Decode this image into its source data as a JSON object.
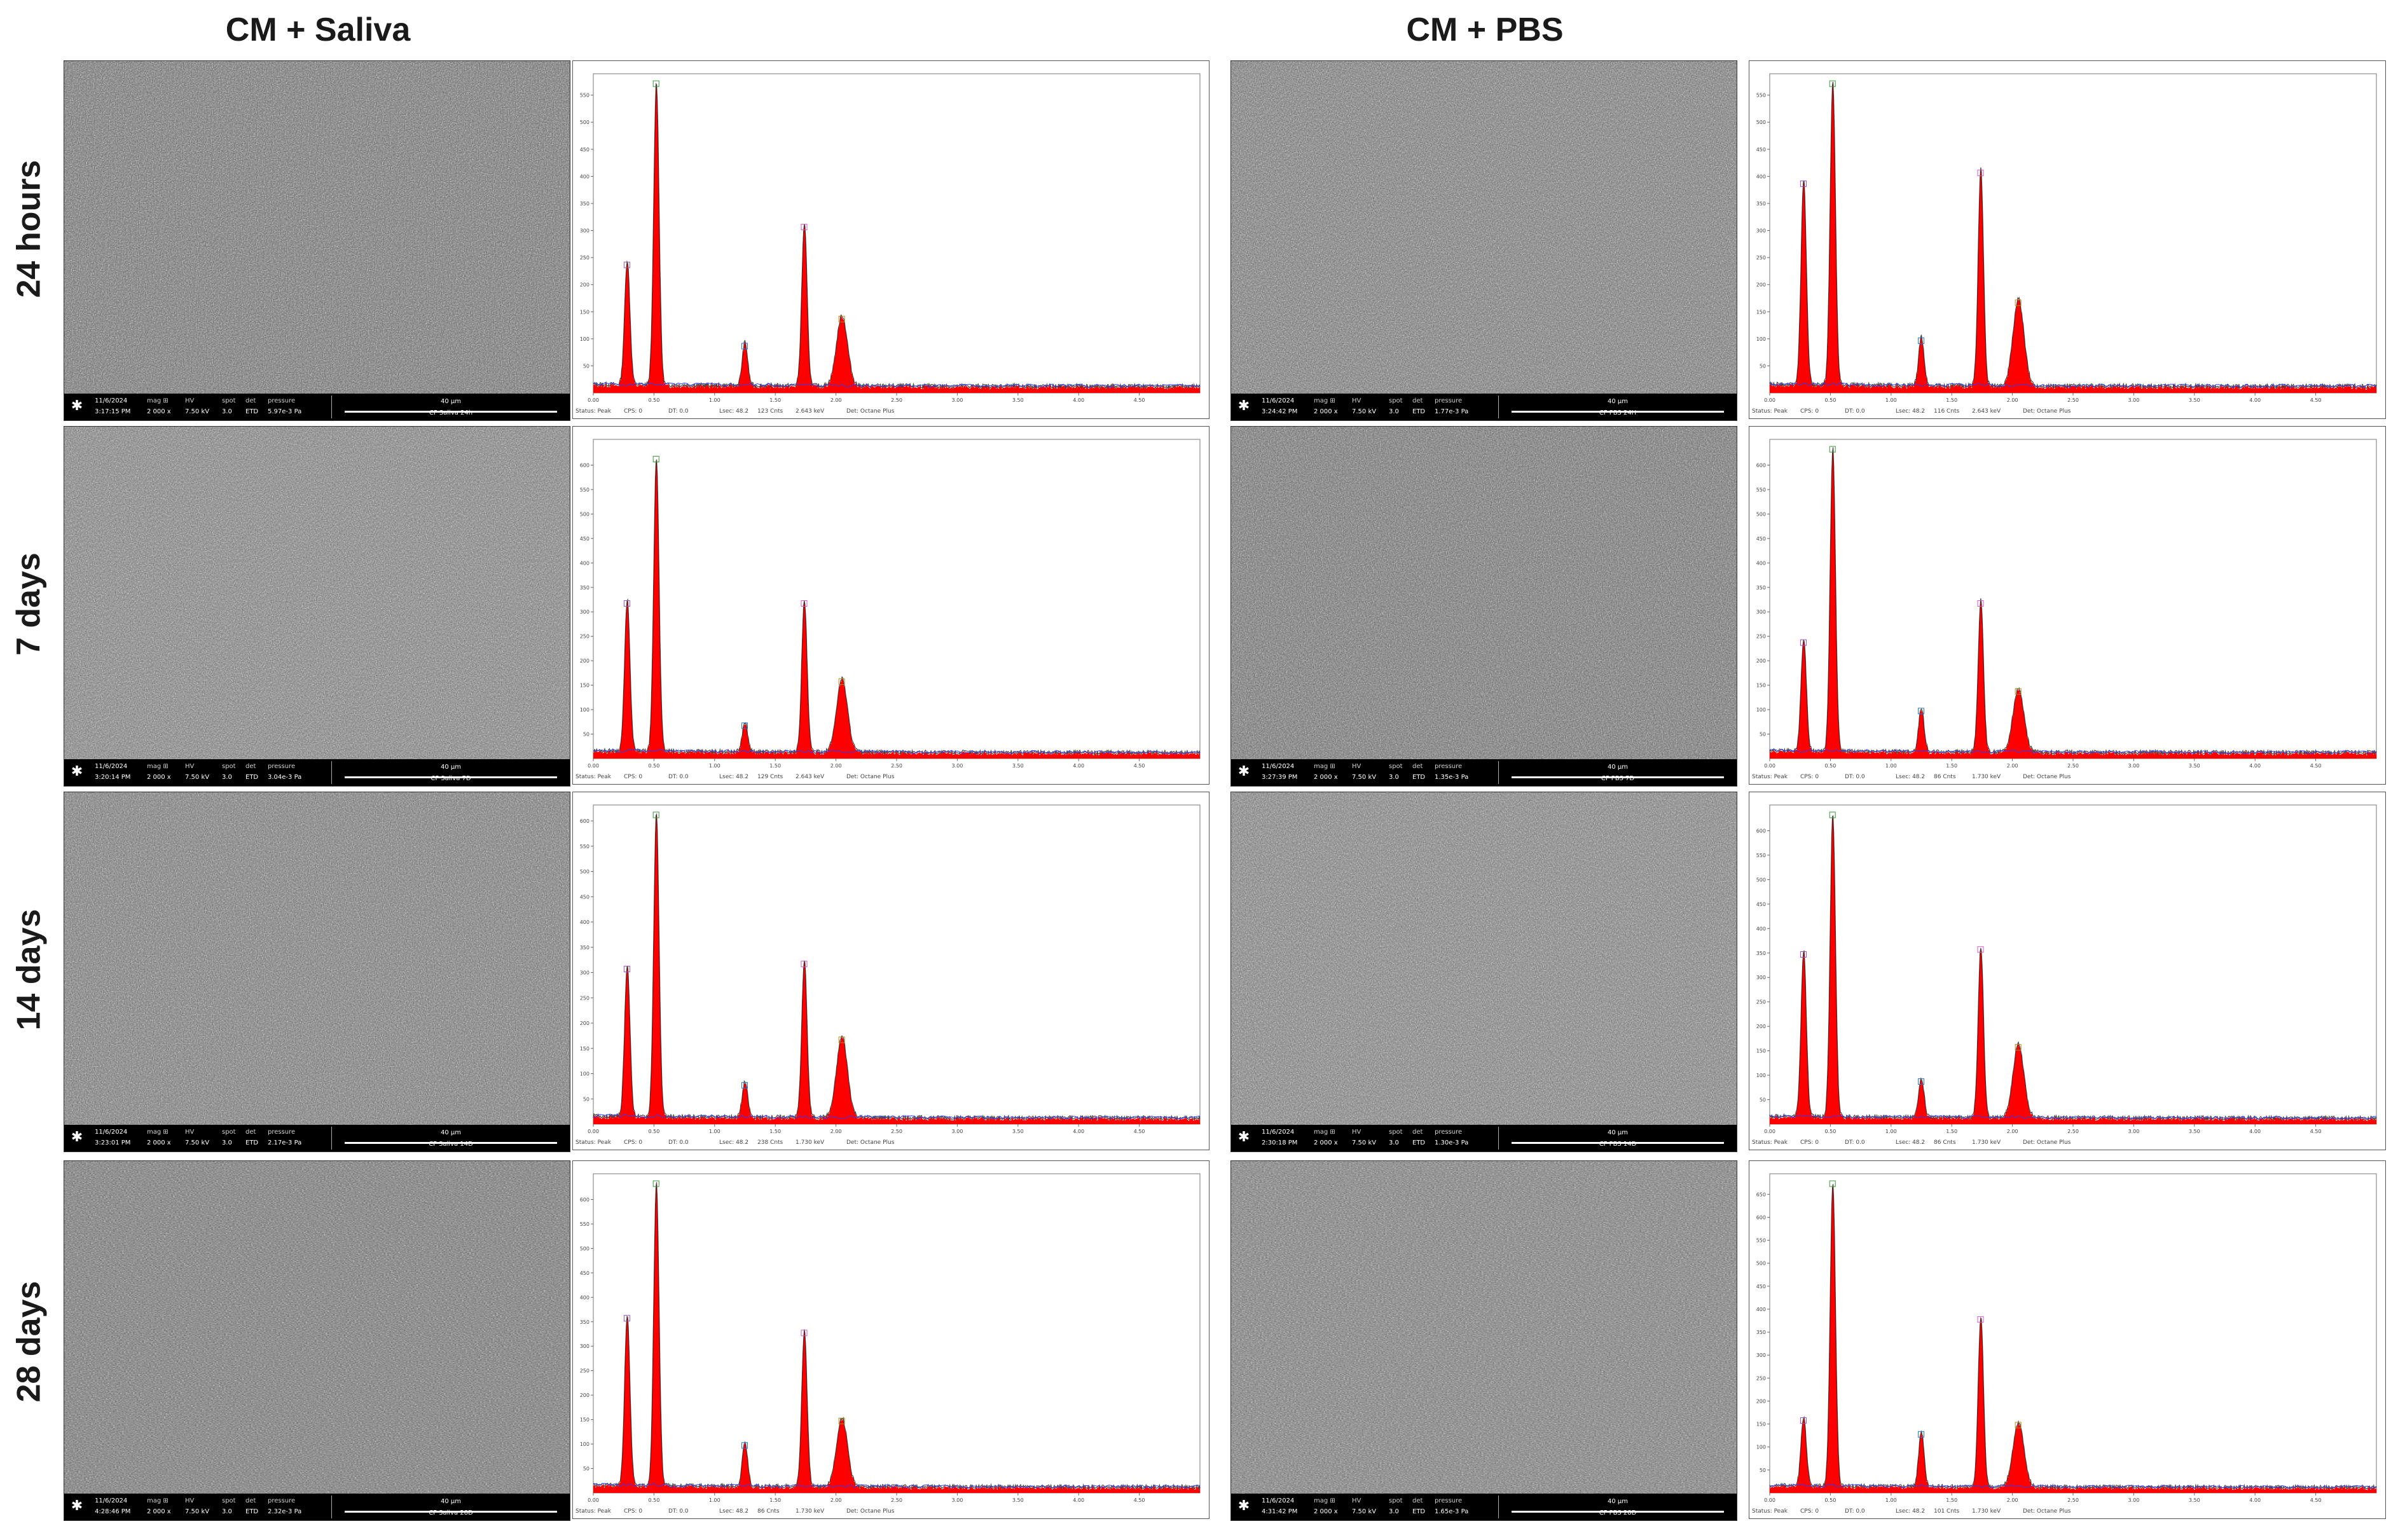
{
  "columns": [
    {
      "title": "CM + Saliva"
    },
    {
      "title": "CM + PBS"
    }
  ],
  "rows": [
    {
      "label": "24 hours"
    },
    {
      "label": "7 days"
    },
    {
      "label": "14 days"
    },
    {
      "label": "28 days"
    }
  ],
  "sem_headers": {
    "mag": "mag",
    "hv": "HV",
    "spot": "spot",
    "det": "det",
    "pressure": "pressure",
    "scale": "40 µm"
  },
  "sem_images": [
    {
      "date": "11/6/2024",
      "time": "3:17:15 PM",
      "mag": "2 000 x",
      "hv": "7.50 kV",
      "spot": "3.0",
      "det": "ETD",
      "pressure": "5.97e-3 Pa",
      "name": "CF Saliva 24h"
    },
    {
      "date": "11/6/2024",
      "time": "3:24:42 PM",
      "mag": "2 000 x",
      "hv": "7.50 kV",
      "spot": "3.0",
      "det": "ETD",
      "pressure": "1.77e-3 Pa",
      "name": "CF PBS 24H"
    },
    {
      "date": "11/6/2024",
      "time": "3:20:14 PM",
      "mag": "2 000 x",
      "hv": "7.50 kV",
      "spot": "3.0",
      "det": "ETD",
      "pressure": "3.04e-3 Pa",
      "name": "CF Saliva 7D"
    },
    {
      "date": "11/6/2024",
      "time": "3:27:39 PM",
      "mag": "2 000 x",
      "hv": "7.50 kV",
      "spot": "3.0",
      "det": "ETD",
      "pressure": "1.35e-3 Pa",
      "name": "CF PBS 7D"
    },
    {
      "date": "11/6/2024",
      "time": "3:23:01 PM",
      "mag": "2 000 x",
      "hv": "7.50 kV",
      "spot": "3.0",
      "det": "ETD",
      "pressure": "2.17e-3 Pa",
      "name": "CF Saliva 14D"
    },
    {
      "date": "11/6/2024",
      "time": "2:30:18 PM",
      "mag": "2 000 x",
      "hv": "7.50 kV",
      "spot": "3.0",
      "det": "ETD",
      "pressure": "1.30e-3 Pa",
      "name": "CF PBS 14D"
    },
    {
      "date": "11/6/2024",
      "time": "4:28:46 PM",
      "mag": "2 000 x",
      "hv": "7.50 kV",
      "spot": "3.0",
      "det": "ETD",
      "pressure": "2.32e-3 Pa",
      "name": "CF Saliva 28D"
    },
    {
      "date": "11/6/2024",
      "time": "4:31:42 PM",
      "mag": "2 000 x",
      "hv": "7.50 kV",
      "spot": "3.0",
      "det": "ETD",
      "pressure": "1.65e-3 Pa",
      "name": "CF PBS 28D"
    }
  ],
  "eds_footer": {
    "status": "Status: Peak",
    "cps": "CPS: 0",
    "dt": "DT: 0.0",
    "lsec": "Lsec: 48.2",
    "det": "Det: Octane Plus"
  },
  "chart_data": {
    "type": "area",
    "xlabel": "keV",
    "xlim": [
      0,
      5.0
    ],
    "x_ticks": [
      "0.00",
      "0.50",
      "1.00",
      "1.50",
      "2.00",
      "2.50",
      "3.00",
      "3.50",
      "4.00",
      "4.50"
    ],
    "colors": {
      "fill": "#ff0000",
      "outline": "#000000",
      "background_line": "#2b3cff"
    },
    "spectra": [
      {
        "id": "saliva-24h",
        "ymax": 560,
        "y_ticks": [
          "50",
          "100",
          "150",
          "200",
          "250",
          "300",
          "350",
          "400",
          "450",
          "500",
          "550"
        ],
        "peaks": [
          {
            "kev": 0.28,
            "counts": 230
          },
          {
            "kev": 0.52,
            "counts": 560
          },
          {
            "kev": 1.25,
            "counts": 80
          },
          {
            "kev": 1.74,
            "counts": 300
          },
          {
            "kev": 2.05,
            "counts": 130
          }
        ],
        "footer_counts": "123 Cnts",
        "footer_kev": "2.643 keV"
      },
      {
        "id": "pbs-24h",
        "ymax": 560,
        "y_ticks": [
          "50",
          "100",
          "150",
          "200",
          "250",
          "300",
          "350",
          "400",
          "450",
          "500",
          "550"
        ],
        "peaks": [
          {
            "kev": 0.28,
            "counts": 380
          },
          {
            "kev": 0.52,
            "counts": 560
          },
          {
            "kev": 1.25,
            "counts": 90
          },
          {
            "kev": 1.74,
            "counts": 400
          },
          {
            "kev": 2.05,
            "counts": 160
          }
        ],
        "footer_counts": "116 Cnts",
        "footer_kev": "2.643 keV"
      },
      {
        "id": "saliva-7d",
        "ymax": 620,
        "y_ticks": [
          "50",
          "100",
          "150",
          "200",
          "250",
          "300",
          "350",
          "400",
          "450",
          "500",
          "550",
          "600"
        ],
        "peaks": [
          {
            "kev": 0.28,
            "counts": 310
          },
          {
            "kev": 0.52,
            "counts": 600
          },
          {
            "kev": 1.25,
            "counts": 60
          },
          {
            "kev": 1.74,
            "counts": 310
          },
          {
            "kev": 2.05,
            "counts": 150
          }
        ],
        "footer_counts": "129 Cnts",
        "footer_kev": "2.643 keV"
      },
      {
        "id": "pbs-7d",
        "ymax": 620,
        "y_ticks": [
          "50",
          "100",
          "150",
          "200",
          "250",
          "300",
          "350",
          "400",
          "450",
          "500",
          "550",
          "600"
        ],
        "peaks": [
          {
            "kev": 0.28,
            "counts": 230
          },
          {
            "kev": 0.52,
            "counts": 620
          },
          {
            "kev": 1.25,
            "counts": 90
          },
          {
            "kev": 1.74,
            "counts": 310
          },
          {
            "kev": 2.05,
            "counts": 130
          }
        ],
        "footer_counts": "86 Cnts",
        "footer_kev": "1.730 keV"
      },
      {
        "id": "saliva-14d",
        "ymax": 600,
        "y_ticks": [
          "50",
          "100",
          "150",
          "200",
          "250",
          "300",
          "350",
          "400",
          "450",
          "500",
          "550",
          "600"
        ],
        "peaks": [
          {
            "kev": 0.28,
            "counts": 300
          },
          {
            "kev": 0.52,
            "counts": 600
          },
          {
            "kev": 1.25,
            "counts": 70
          },
          {
            "kev": 1.74,
            "counts": 310
          },
          {
            "kev": 2.05,
            "counts": 160
          }
        ],
        "footer_counts": "238 Cnts",
        "footer_kev": "1.730 keV"
      },
      {
        "id": "pbs-14d",
        "ymax": 620,
        "y_ticks": [
          "50",
          "100",
          "150",
          "200",
          "250",
          "300",
          "350",
          "400",
          "450",
          "500",
          "550",
          "600"
        ],
        "peaks": [
          {
            "kev": 0.28,
            "counts": 340
          },
          {
            "kev": 0.52,
            "counts": 620
          },
          {
            "kev": 1.25,
            "counts": 80
          },
          {
            "kev": 1.74,
            "counts": 350
          },
          {
            "kev": 2.05,
            "counts": 150
          }
        ],
        "footer_counts": "86 Cnts",
        "footer_kev": "1.730 keV"
      },
      {
        "id": "saliva-28d",
        "ymax": 620,
        "y_ticks": [
          "50",
          "100",
          "150",
          "200",
          "250",
          "300",
          "350",
          "400",
          "450",
          "500",
          "550",
          "600"
        ],
        "peaks": [
          {
            "kev": 0.28,
            "counts": 350
          },
          {
            "kev": 0.52,
            "counts": 620
          },
          {
            "kev": 1.25,
            "counts": 90
          },
          {
            "kev": 1.74,
            "counts": 320
          },
          {
            "kev": 2.05,
            "counts": 140
          }
        ],
        "footer_counts": "86 Cnts",
        "footer_kev": "1.730 keV"
      },
      {
        "id": "pbs-28d",
        "ymax": 660,
        "y_ticks": [
          "50",
          "100",
          "150",
          "200",
          "250",
          "300",
          "350",
          "400",
          "450",
          "500",
          "550",
          "600",
          "650"
        ],
        "peaks": [
          {
            "kev": 0.28,
            "counts": 150
          },
          {
            "kev": 0.52,
            "counts": 660
          },
          {
            "kev": 1.25,
            "counts": 120
          },
          {
            "kev": 1.74,
            "counts": 370
          },
          {
            "kev": 2.05,
            "counts": 140
          }
        ],
        "footer_counts": "101 Cnts",
        "footer_kev": "1.730 keV"
      }
    ]
  }
}
